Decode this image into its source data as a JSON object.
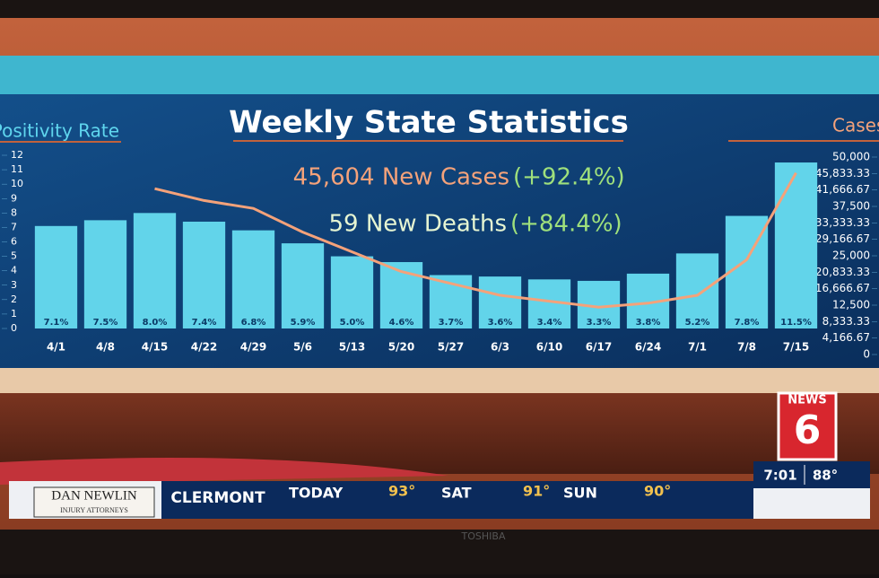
{
  "chart_data": {
    "type": "bar_line",
    "title": "Weekly State Statistics",
    "headline_cases": "45,604 New Cases",
    "headline_cases_change": "(+92.4%)",
    "headline_deaths": "59 New Deaths",
    "headline_deaths_change": "(+84.4%)",
    "ylabel": "Positivity Rate",
    "y2label": "Cases",
    "categories": [
      "4/1",
      "4/8",
      "4/15",
      "4/22",
      "4/29",
      "5/6",
      "5/13",
      "5/20",
      "5/27",
      "6/3",
      "6/10",
      "6/17",
      "6/24",
      "7/1",
      "7/8",
      "7/15"
    ],
    "series": [
      {
        "type": "bar",
        "color": "#62d4ea",
        "values": [
          7.1,
          7.5,
          8.0,
          7.4,
          6.8,
          5.9,
          5.0,
          4.6,
          3.7,
          3.6,
          3.4,
          3.3,
          3.8,
          5.2,
          7.8,
          11.5
        ],
        "value_labels": [
          "7.1%",
          "7.5%",
          "8.0%",
          "7.4%",
          "6.8%",
          "5.9%",
          "5.0%",
          "4.6%",
          "3.7%",
          "3.6%",
          "3.4%",
          "3.3%",
          "3.8%",
          "5.2%",
          "7.8%",
          "11.5%"
        ]
      },
      {
        "type": "line",
        "axis": "y2",
        "color": "#f4a27a",
        "values": [
          null,
          null,
          42000,
          39000,
          37000,
          31000,
          26000,
          21000,
          18000,
          15000,
          13500,
          12000,
          13000,
          15000,
          24000,
          46000
        ]
      }
    ],
    "ylim": [
      0,
      12
    ],
    "yticks": [
      0,
      1,
      2,
      3,
      4,
      5,
      6,
      7,
      8,
      9,
      10,
      11,
      12
    ],
    "y2lim": [
      0,
      50000
    ],
    "y2ticks": [
      0,
      {
        "value": 4166.67,
        "label": "4,166.67"
      },
      {
        "value": 8333.33,
        "label": "8,333.33"
      },
      {
        "value": 12500,
        "label": "12,500"
      },
      {
        "value": 16666.67,
        "label": "16,666.67"
      },
      {
        "value": 20833.33,
        "label": "20,833.33"
      },
      {
        "value": 25000,
        "label": "25,000"
      },
      {
        "value": 29166.67,
        "label": "29,166.67"
      },
      {
        "value": 33333.33,
        "label": "33,333.33"
      },
      {
        "value": 37500,
        "label": "37,500"
      },
      {
        "value": 41666.67,
        "label": "41,666.67"
      },
      {
        "value": 45833.33,
        "label": "45,833.33"
      },
      {
        "value": 50000,
        "label": "50,000"
      }
    ]
  },
  "ticker": {
    "sponsor": "DAN NEWLIN",
    "sponsor_sub": "INJURY ATTORNEYS",
    "city": "CLERMONT",
    "days": [
      {
        "day": "TODAY",
        "temp": "93°"
      },
      {
        "day": "SAT",
        "temp": "91°"
      },
      {
        "day": "SUN",
        "temp": "90°"
      }
    ],
    "time": "7:01",
    "temp_now": "88°",
    "logo_text": "NEWS",
    "logo_num": "6"
  },
  "tv_brand": "TOSHIBA"
}
